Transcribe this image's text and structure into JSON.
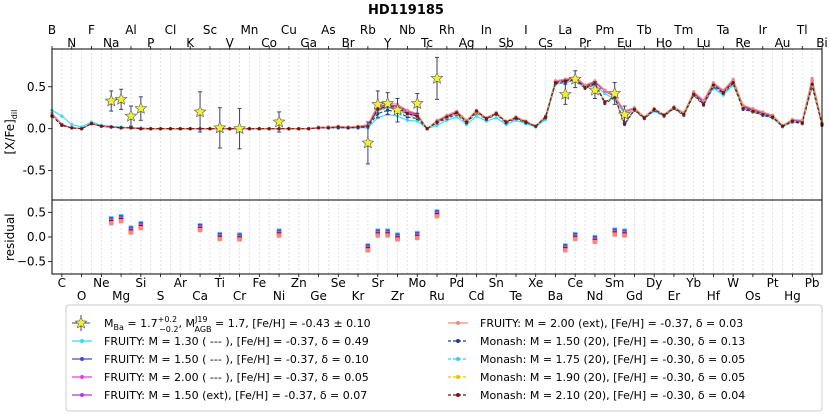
{
  "title": "HD119185",
  "chart_data": {
    "type": "line",
    "title": "HD119185",
    "elements": [
      "B",
      "C",
      "N",
      "O",
      "F",
      "Ne",
      "Na",
      "Mg",
      "Al",
      "Si",
      "P",
      "S",
      "Cl",
      "Ar",
      "K",
      "Ca",
      "Sc",
      "Ti",
      "V",
      "Cr",
      "Mn",
      "Fe",
      "Co",
      "Ni",
      "Cu",
      "Zn",
      "Ga",
      "Ge",
      "As",
      "Se",
      "Br",
      "Kr",
      "Rb",
      "Sr",
      "Y",
      "Zr",
      "Nb",
      "Mo",
      "Tc",
      "Ru",
      "Rh",
      "Pd",
      "Ag",
      "Cd",
      "In",
      "Sn",
      "Sb",
      "Te",
      "I",
      "Xe",
      "Cs",
      "Ba",
      "La",
      "Ce",
      "Pr",
      "Nd",
      "Pm",
      "Sm",
      "Eu",
      "Gd",
      "Tb",
      "Dy",
      "Ho",
      "Er",
      "Tm",
      "Yb",
      "Lu",
      "Hf",
      "Ta",
      "W",
      "Re",
      "Os",
      "Ir",
      "Pt",
      "Au",
      "Hg",
      "Tl",
      "Pb",
      "Bi"
    ],
    "top_tick_labels": [
      "B",
      "N",
      "F",
      "Na",
      "Al",
      "P",
      "Cl",
      "K",
      "Sc",
      "V",
      "Mn",
      "Co",
      "Cu",
      "Ga",
      "As",
      "Br",
      "Rb",
      "Y",
      "Nb",
      "Tc",
      "Rh",
      "Ag",
      "In",
      "Sb",
      "I",
      "Cs",
      "La",
      "Pr",
      "Pm",
      "Eu",
      "Tb",
      "Ho",
      "Tm",
      "Lu",
      "Ta",
      "Re",
      "Ir",
      "Au",
      "Tl",
      "Bi"
    ],
    "bottom_tick_labels": [
      "C",
      "O",
      "Ne",
      "Mg",
      "Si",
      "S",
      "Ar",
      "Ca",
      "Ti",
      "Cr",
      "Fe",
      "Ni",
      "Zn",
      "Ge",
      "Se",
      "Kr",
      "Sr",
      "Zr",
      "Mo",
      "Ru",
      "Pd",
      "Cd",
      "Sn",
      "Te",
      "Xe",
      "Ba",
      "Ce",
      "Nd",
      "Sm",
      "Gd",
      "Dy",
      "Er",
      "Yb",
      "Hf",
      "W",
      "Os",
      "Pt",
      "Hg",
      "Pb"
    ],
    "main_panel": {
      "ylabel": "[X/Fe]dil",
      "ylabel_main": "[X/Fe]",
      "ylabel_sub": "dil",
      "ylim": [
        -0.85,
        0.95
      ],
      "yticks": [
        0.5,
        0.0,
        -0.5
      ],
      "ytick_labels": [
        "0.5",
        "0.0",
        "-0.5"
      ]
    },
    "residual_panel": {
      "ylabel": "residual",
      "ylim": [
        -0.75,
        0.75
      ],
      "yticks": [
        0.5,
        0.0,
        -0.5
      ],
      "ytick_labels": [
        "0.5",
        "0.0",
        "−0.5"
      ]
    },
    "observed": {
      "color": "#f2ef3a",
      "points": [
        {
          "el": "Na",
          "y": 0.33,
          "err": 0.12
        },
        {
          "el": "Mg",
          "y": 0.35,
          "err": 0.12
        },
        {
          "el": "Al",
          "y": 0.15,
          "err": 0.12
        },
        {
          "el": "Si",
          "y": 0.24,
          "err": 0.14
        },
        {
          "el": "Ca",
          "y": 0.2,
          "err": 0.24
        },
        {
          "el": "Ti",
          "y": 0.01,
          "err": 0.24
        },
        {
          "el": "Cr",
          "y": 0.0,
          "err": 0.24
        },
        {
          "el": "Ni",
          "y": 0.08,
          "err": 0.12
        },
        {
          "el": "Rb",
          "y": -0.17,
          "err": 0.25
        },
        {
          "el": "Sr",
          "y": 0.29,
          "err": 0.16
        },
        {
          "el": "Y",
          "y": 0.3,
          "err": 0.13
        },
        {
          "el": "Zr",
          "y": 0.22,
          "err": 0.14
        },
        {
          "el": "Mo",
          "y": 0.3,
          "err": 0.12
        },
        {
          "el": "Ru",
          "y": 0.6,
          "err": 0.25
        },
        {
          "el": "La",
          "y": 0.41,
          "err": 0.12
        },
        {
          "el": "Ce",
          "y": 0.59,
          "err": 0.1
        },
        {
          "el": "Nd",
          "y": 0.46,
          "err": 0.1
        },
        {
          "el": "Sm",
          "y": 0.42,
          "err": 0.13
        },
        {
          "el": "Eu",
          "y": 0.17,
          "err": 0.1
        }
      ]
    },
    "residuals": [
      {
        "el": "Na",
        "y": 0.33
      },
      {
        "el": "Mg",
        "y": 0.37
      },
      {
        "el": "Al",
        "y": 0.14
      },
      {
        "el": "Si",
        "y": 0.23
      },
      {
        "el": "Ca",
        "y": 0.19
      },
      {
        "el": "Ti",
        "y": 0.01
      },
      {
        "el": "Cr",
        "y": 0.0
      },
      {
        "el": "Ni",
        "y": 0.08
      },
      {
        "el": "Rb",
        "y": -0.22
      },
      {
        "el": "Sr",
        "y": 0.08
      },
      {
        "el": "Y",
        "y": 0.08
      },
      {
        "el": "Zr",
        "y": 0.0
      },
      {
        "el": "Mo",
        "y": 0.03
      },
      {
        "el": "Ru",
        "y": 0.47
      },
      {
        "el": "La",
        "y": -0.22
      },
      {
        "el": "Ce",
        "y": 0.01
      },
      {
        "el": "Nd",
        "y": -0.05
      },
      {
        "el": "Sm",
        "y": 0.1
      },
      {
        "el": "Eu",
        "y": 0.08
      }
    ],
    "series": [
      {
        "name": "FRUITY:   M = 1.30 ( --- ), [Fe/H] = -0.37, δ = 0.49",
        "color": "#33dbff",
        "style": "solid",
        "values": [
          0.22,
          0.15,
          0.05,
          0.02,
          0.08,
          0.04,
          0.03,
          0.02,
          0.01,
          0.01,
          0.0,
          0.0,
          0.0,
          0.0,
          0.0,
          0.0,
          0.0,
          0.0,
          0.0,
          0.0,
          0.0,
          0.0,
          0.0,
          0.0,
          0.0,
          0.0,
          0.0,
          0.01,
          0.01,
          0.01,
          0.01,
          0.01,
          0.01,
          0.13,
          0.17,
          0.15,
          0.1,
          0.09,
          0.0,
          0.04,
          0.1,
          0.14,
          0.05,
          0.15,
          0.09,
          0.13,
          0.05,
          0.1,
          0.06,
          0.02,
          0.11,
          0.53,
          0.55,
          0.58,
          0.48,
          0.52,
          0.42,
          0.35,
          0.18,
          0.22,
          0.12,
          0.21,
          0.15,
          0.24,
          0.16,
          0.4,
          0.3,
          0.48,
          0.4,
          0.52,
          0.24,
          0.2,
          0.16,
          0.13,
          0.02,
          0.08,
          0.07,
          0.52,
          0.05
        ]
      },
      {
        "name": "FRUITY:   M = 1.50 ( --- ), [Fe/H] = -0.37, δ = 0.10",
        "color": "#3f4bd6",
        "style": "solid",
        "values": [
          0.18,
          0.05,
          0.01,
          0.0,
          0.06,
          0.03,
          0.02,
          0.01,
          0.01,
          0.0,
          0.0,
          0.0,
          0.0,
          0.0,
          0.0,
          0.0,
          0.0,
          0.0,
          0.0,
          0.0,
          0.0,
          0.0,
          0.0,
          0.0,
          0.0,
          0.0,
          0.0,
          0.01,
          0.01,
          0.02,
          0.01,
          0.02,
          0.03,
          0.22,
          0.26,
          0.24,
          0.18,
          0.15,
          0.0,
          0.08,
          0.13,
          0.18,
          0.08,
          0.2,
          0.12,
          0.18,
          0.08,
          0.13,
          0.08,
          0.03,
          0.14,
          0.56,
          0.58,
          0.6,
          0.5,
          0.55,
          0.45,
          0.38,
          0.2,
          0.24,
          0.13,
          0.23,
          0.16,
          0.25,
          0.18,
          0.42,
          0.32,
          0.52,
          0.44,
          0.56,
          0.26,
          0.22,
          0.18,
          0.14,
          0.03,
          0.09,
          0.08,
          0.55,
          0.06
        ]
      },
      {
        "name": "FRUITY:   M = 2.00 ( --- ), [Fe/H] = -0.37, δ = 0.05",
        "color": "#e83fd8",
        "style": "solid",
        "values": [
          0.18,
          0.04,
          0.01,
          0.0,
          0.06,
          0.03,
          0.02,
          0.01,
          0.01,
          0.0,
          0.0,
          0.0,
          0.0,
          0.0,
          0.0,
          0.0,
          0.0,
          0.0,
          0.0,
          0.0,
          0.0,
          0.0,
          0.0,
          0.0,
          0.0,
          0.0,
          0.0,
          0.01,
          0.02,
          0.02,
          0.02,
          0.02,
          0.04,
          0.25,
          0.28,
          0.26,
          0.2,
          0.16,
          0.0,
          0.09,
          0.14,
          0.19,
          0.09,
          0.21,
          0.12,
          0.18,
          0.08,
          0.13,
          0.08,
          0.03,
          0.14,
          0.56,
          0.58,
          0.61,
          0.51,
          0.56,
          0.45,
          0.38,
          0.2,
          0.24,
          0.13,
          0.23,
          0.16,
          0.25,
          0.18,
          0.43,
          0.33,
          0.53,
          0.45,
          0.57,
          0.27,
          0.23,
          0.19,
          0.15,
          0.03,
          0.1,
          0.09,
          0.57,
          0.06
        ]
      },
      {
        "name": "FRUITY:   M = 1.50 (ext), [Fe/H] = -0.37, δ = 0.07",
        "color": "#b638e0",
        "style": "solid",
        "values": [
          0.18,
          0.05,
          0.01,
          0.0,
          0.06,
          0.03,
          0.02,
          0.01,
          0.01,
          0.0,
          0.0,
          0.0,
          0.0,
          0.0,
          0.0,
          0.0,
          0.0,
          0.0,
          0.0,
          0.0,
          0.0,
          0.0,
          0.0,
          0.0,
          0.0,
          0.0,
          0.0,
          0.01,
          0.02,
          0.02,
          0.02,
          0.02,
          0.04,
          0.26,
          0.29,
          0.27,
          0.21,
          0.17,
          0.0,
          0.09,
          0.15,
          0.2,
          0.09,
          0.21,
          0.13,
          0.19,
          0.08,
          0.14,
          0.09,
          0.03,
          0.15,
          0.57,
          0.59,
          0.61,
          0.51,
          0.56,
          0.46,
          0.39,
          0.21,
          0.25,
          0.13,
          0.23,
          0.17,
          0.26,
          0.18,
          0.43,
          0.33,
          0.54,
          0.45,
          0.58,
          0.27,
          0.23,
          0.19,
          0.15,
          0.03,
          0.1,
          0.09,
          0.58,
          0.07
        ]
      },
      {
        "name": "FRUITY:   M = 2.00 (ext), [Fe/H] = -0.37, δ = 0.03",
        "color": "#f28a80",
        "style": "solid",
        "values": [
          0.18,
          0.04,
          0.01,
          0.0,
          0.06,
          0.03,
          0.02,
          0.01,
          0.01,
          0.0,
          0.0,
          0.0,
          0.0,
          0.0,
          0.0,
          0.0,
          0.0,
          0.0,
          0.0,
          0.0,
          0.0,
          0.0,
          0.0,
          0.0,
          0.0,
          0.0,
          0.0,
          0.02,
          0.02,
          0.03,
          0.02,
          0.03,
          0.05,
          0.28,
          0.31,
          0.29,
          0.22,
          0.18,
          0.0,
          0.1,
          0.16,
          0.21,
          0.1,
          0.22,
          0.13,
          0.19,
          0.09,
          0.14,
          0.09,
          0.03,
          0.15,
          0.57,
          0.59,
          0.62,
          0.52,
          0.57,
          0.46,
          0.39,
          0.21,
          0.25,
          0.14,
          0.24,
          0.17,
          0.26,
          0.19,
          0.44,
          0.34,
          0.55,
          0.46,
          0.59,
          0.28,
          0.24,
          0.2,
          0.16,
          0.04,
          0.11,
          0.1,
          0.6,
          0.07
        ]
      },
      {
        "name": "Monash:  M = 1.50 (20),  [Fe/H] = -0.30,  δ = 0.13",
        "color": "#1f3a93",
        "style": "dashed",
        "values": [
          0.15,
          0.04,
          0.01,
          0.0,
          0.06,
          0.03,
          0.02,
          0.01,
          0.01,
          0.0,
          0.0,
          0.0,
          0.0,
          0.0,
          0.0,
          0.0,
          0.0,
          0.0,
          0.0,
          0.0,
          0.0,
          0.0,
          0.0,
          0.0,
          0.0,
          0.0,
          0.0,
          0.01,
          0.01,
          0.01,
          0.01,
          0.01,
          0.02,
          0.18,
          0.22,
          0.2,
          0.14,
          0.12,
          0.0,
          0.07,
          0.12,
          0.17,
          0.07,
          0.19,
          0.11,
          0.17,
          0.07,
          0.12,
          0.07,
          0.03,
          0.13,
          0.54,
          0.55,
          0.59,
          0.48,
          0.53,
          0.3,
          0.37,
          0.05,
          0.22,
          0.12,
          0.22,
          0.15,
          0.24,
          0.16,
          0.4,
          0.28,
          0.5,
          0.42,
          0.54,
          0.23,
          0.2,
          0.16,
          0.13,
          0.03,
          0.08,
          0.06,
          0.5,
          0.04
        ]
      },
      {
        "name": "Monash:  M = 1.75 (20),  [Fe/H] = -0.30,  δ = 0.05",
        "color": "#2bd3f0",
        "style": "dashed",
        "values": [
          0.15,
          0.04,
          0.01,
          0.0,
          0.06,
          0.03,
          0.02,
          0.01,
          0.01,
          0.0,
          0.0,
          0.0,
          0.0,
          0.0,
          0.0,
          0.0,
          0.0,
          0.0,
          0.0,
          0.0,
          0.0,
          0.0,
          0.0,
          0.0,
          0.0,
          0.0,
          0.0,
          0.01,
          0.01,
          0.02,
          0.01,
          0.02,
          0.03,
          0.21,
          0.25,
          0.23,
          0.16,
          0.14,
          0.0,
          0.08,
          0.13,
          0.18,
          0.08,
          0.2,
          0.12,
          0.18,
          0.08,
          0.13,
          0.08,
          0.03,
          0.14,
          0.55,
          0.57,
          0.6,
          0.49,
          0.54,
          0.32,
          0.38,
          0.06,
          0.23,
          0.13,
          0.23,
          0.16,
          0.25,
          0.17,
          0.41,
          0.29,
          0.51,
          0.43,
          0.55,
          0.24,
          0.21,
          0.17,
          0.14,
          0.03,
          0.09,
          0.07,
          0.52,
          0.05
        ]
      },
      {
        "name": "Monash:  M = 1.90 (20),  [Fe/H] = -0.30,  δ = 0.05",
        "color": "#e8c400",
        "style": "dashed",
        "values": [
          0.15,
          0.04,
          0.01,
          0.0,
          0.06,
          0.03,
          0.02,
          0.01,
          0.01,
          0.0,
          0.0,
          0.0,
          0.0,
          0.0,
          0.0,
          0.0,
          0.0,
          0.0,
          0.0,
          0.0,
          0.0,
          0.0,
          0.0,
          0.0,
          0.0,
          0.0,
          0.0,
          0.01,
          0.01,
          0.02,
          0.01,
          0.02,
          0.03,
          0.22,
          0.26,
          0.24,
          0.17,
          0.14,
          0.0,
          0.08,
          0.13,
          0.18,
          0.08,
          0.2,
          0.12,
          0.18,
          0.08,
          0.13,
          0.08,
          0.03,
          0.14,
          0.55,
          0.57,
          0.6,
          0.49,
          0.54,
          0.32,
          0.38,
          0.06,
          0.23,
          0.13,
          0.23,
          0.16,
          0.25,
          0.17,
          0.41,
          0.29,
          0.52,
          0.43,
          0.55,
          0.24,
          0.21,
          0.17,
          0.14,
          0.03,
          0.09,
          0.07,
          0.53,
          0.05
        ]
      },
      {
        "name": "Monash:  M = 2.10 (20),  [Fe/H] = -0.30,  δ = 0.04",
        "color": "#7a1010",
        "style": "dashed",
        "values": [
          0.15,
          0.04,
          0.01,
          0.0,
          0.06,
          0.03,
          0.02,
          0.01,
          0.01,
          0.0,
          0.0,
          0.0,
          0.0,
          0.0,
          0.0,
          0.0,
          0.0,
          0.0,
          0.0,
          0.0,
          0.0,
          0.0,
          0.0,
          0.0,
          0.0,
          0.0,
          0.0,
          0.01,
          0.01,
          0.02,
          0.01,
          0.02,
          0.03,
          0.23,
          0.27,
          0.25,
          0.18,
          0.15,
          0.0,
          0.08,
          0.14,
          0.19,
          0.08,
          0.21,
          0.12,
          0.18,
          0.08,
          0.13,
          0.08,
          0.03,
          0.14,
          0.55,
          0.57,
          0.6,
          0.49,
          0.54,
          0.32,
          0.38,
          0.06,
          0.23,
          0.13,
          0.23,
          0.16,
          0.25,
          0.17,
          0.41,
          0.29,
          0.52,
          0.43,
          0.55,
          0.24,
          0.21,
          0.17,
          0.14,
          0.03,
          0.09,
          0.07,
          0.53,
          0.05
        ]
      }
    ],
    "legend": {
      "placement": "bottom",
      "observed_label": "M_Ba = 1.7 (+0.2 / -0.2), M_AGB (J19) = 1.7, [Fe/H] = -0.43 ± 0.10",
      "observed_parts": {
        "m": "M",
        "ba_sub": "Ba",
        "eq1": " = 1.7",
        "sup_plus": "+0.2",
        "sub_minus": "−0.2",
        "comma1": ", M",
        "j19_sup": "J19",
        "agb_sub": "AGB",
        "rest": " = 1.7, [Fe/H] = -0.43 ± 0.10"
      }
    }
  }
}
